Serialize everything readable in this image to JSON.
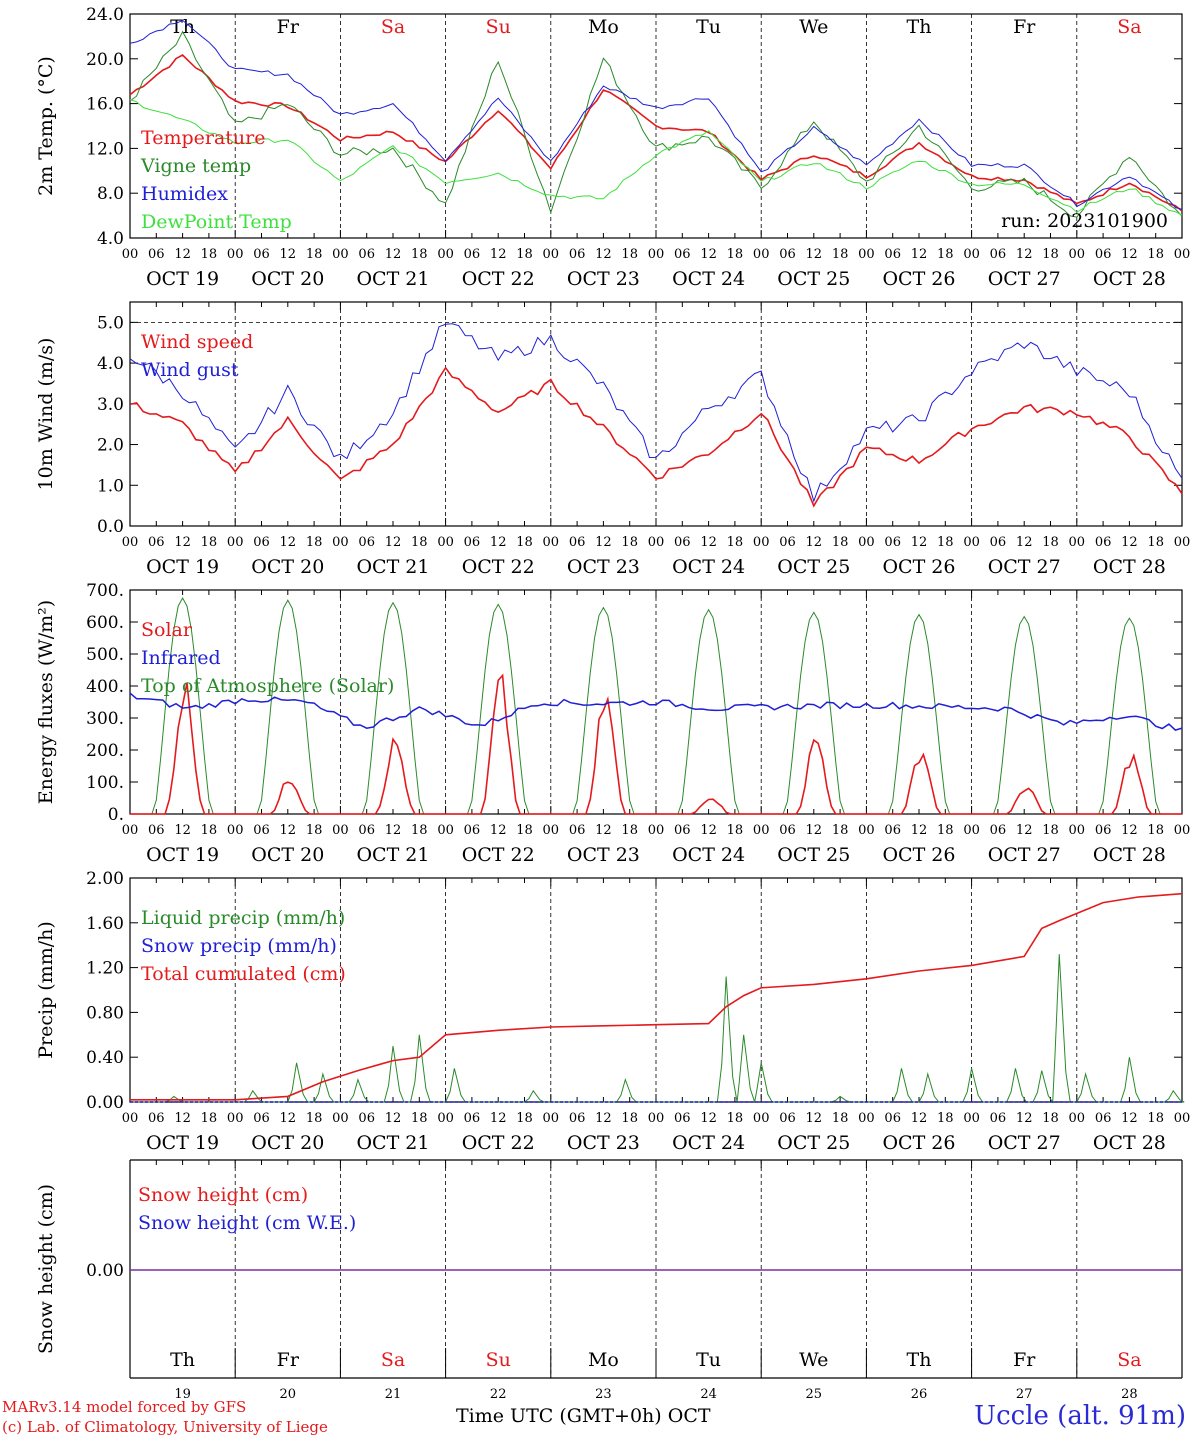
{
  "days": {
    "names": [
      "Th",
      "Fr",
      "Sa",
      "Su",
      "Mo",
      "Tu",
      "We",
      "Th",
      "Fr",
      "Sa"
    ],
    "weekend": [
      false,
      false,
      true,
      true,
      false,
      false,
      false,
      false,
      false,
      true
    ],
    "dates": [
      "OCT 19",
      "OCT 20",
      "OCT 21",
      "OCT 22",
      "OCT 23",
      "OCT 24",
      "OCT 25",
      "OCT 26",
      "OCT 27",
      "OCT 28"
    ],
    "day_numbers": [
      "19",
      "20",
      "21",
      "22",
      "23",
      "24",
      "25",
      "26",
      "27",
      "28"
    ],
    "hour_ticks": [
      "00",
      "06",
      "12",
      "18"
    ],
    "end_tick": "00"
  },
  "colors": {
    "red": "#e41a1c",
    "green": "#2a8a2a",
    "blue": "#1f1fd6",
    "lightgreen": "#3de03d",
    "purple": "#7b2fa0"
  },
  "footer": {
    "model_line": "MARv3.14 model forced by GFS",
    "lab_line": "(c) Lab. of Climatology, University of Liege",
    "time_label": "Time UTC (GMT+0h)",
    "month": "OCT",
    "station": "Uccle (alt. 91m)"
  },
  "chart_data": [
    {
      "type": "line",
      "ylabel": "2m Temp. (°C)",
      "ylim": [
        4,
        24
      ],
      "yticks": [
        "4.0",
        "8.0",
        "12.0",
        "16.0",
        "20.0",
        "24.0"
      ],
      "annotation": "run: 2023101900",
      "x_hours": [
        0,
        12,
        24,
        36,
        48,
        60,
        72,
        84,
        96,
        108,
        120,
        132,
        144,
        156,
        168,
        180,
        192,
        204,
        216,
        228,
        240
      ],
      "series": [
        {
          "name": "Temperature",
          "color": "red",
          "values": [
            16.8,
            20.3,
            16.2,
            15.8,
            12.8,
            13.5,
            10.8,
            15.5,
            10.2,
            17.3,
            14.0,
            13.5,
            9.2,
            11.5,
            9.5,
            12.5,
            9.5,
            9.2,
            7.0,
            9.0,
            6.4
          ]
        },
        {
          "name": "Vigne temp",
          "color": "green",
          "values": [
            16.3,
            22.0,
            14.0,
            16.0,
            11.5,
            12.0,
            7.0,
            20.0,
            6.5,
            20.0,
            12.0,
            13.0,
            8.5,
            14.5,
            9.0,
            14.0,
            8.5,
            9.0,
            6.0,
            11.5,
            5.8
          ]
        },
        {
          "name": "Humidex",
          "color": "blue",
          "values": [
            21.4,
            23.6,
            19.0,
            18.6,
            15.0,
            16.0,
            11.0,
            16.5,
            10.8,
            17.6,
            15.6,
            16.6,
            9.8,
            13.8,
            10.5,
            14.6,
            10.5,
            10.5,
            7.0,
            9.6,
            6.4
          ]
        },
        {
          "name": "DewPoint Temp",
          "color": "lightgreen",
          "values": [
            16.3,
            14.5,
            12.5,
            12.8,
            9.0,
            12.2,
            9.0,
            9.8,
            7.8,
            7.5,
            11.5,
            13.5,
            9.0,
            10.8,
            8.5,
            11.0,
            8.8,
            8.8,
            6.5,
            8.5,
            6.0
          ]
        }
      ]
    },
    {
      "type": "line",
      "ylabel": "10m Wind (m/s)",
      "ylim": [
        0,
        5.5
      ],
      "yticks": [
        "0.0",
        "1.0",
        "2.0",
        "3.0",
        "4.0",
        "5.0"
      ],
      "x_hours": [
        0,
        12,
        24,
        36,
        48,
        60,
        72,
        84,
        96,
        108,
        120,
        132,
        144,
        156,
        168,
        180,
        192,
        204,
        216,
        228,
        240
      ],
      "series": [
        {
          "name": "Wind speed",
          "color": "red",
          "values": [
            3.0,
            2.5,
            1.3,
            2.6,
            1.1,
            2.0,
            3.8,
            2.8,
            3.5,
            2.4,
            1.2,
            1.8,
            2.8,
            0.5,
            1.9,
            1.6,
            2.4,
            2.9,
            2.8,
            2.2,
            0.8
          ]
        },
        {
          "name": "Wind gust",
          "color": "blue",
          "values": [
            4.2,
            3.3,
            1.8,
            3.3,
            1.6,
            2.8,
            5.0,
            4.1,
            4.6,
            3.4,
            1.6,
            2.9,
            3.7,
            0.7,
            2.3,
            2.6,
            3.8,
            4.5,
            3.8,
            3.3,
            1.1
          ]
        }
      ]
    },
    {
      "type": "line",
      "ylabel": "Energy fluxes (W/m²)",
      "ylim": [
        0,
        700
      ],
      "yticks": [
        "0.",
        "100.",
        "200.",
        "300.",
        "400.",
        "500.",
        "600.",
        "700."
      ],
      "series": [
        {
          "name": "Solar",
          "color": "red",
          "peaks": [
            440,
            125,
            250,
            450,
            400,
            60,
            260,
            220,
            95,
            200
          ]
        },
        {
          "name": "Infrared",
          "color": "blue",
          "values": [
            370,
            330,
            360,
            350,
            270,
            330,
            275,
            350,
            345,
            350,
            330,
            335,
            340,
            340,
            335,
            330,
            280,
            310,
            260
          ]
        },
        {
          "name": "Top of Atmosphere (Solar)",
          "color": "green",
          "peaks": [
            675,
            668,
            660,
            655,
            645,
            638,
            630,
            623,
            617,
            612
          ]
        }
      ]
    },
    {
      "type": "line",
      "ylabel": "Precip (mm/h)",
      "ylim": [
        0,
        2.0
      ],
      "yticks": [
        "0.00",
        "0.40",
        "0.80",
        "1.20",
        "1.60",
        "2.00"
      ],
      "series": [
        {
          "name": "Liquid precip (mm/h)",
          "color": "green",
          "events": [
            [
              10,
              0.05
            ],
            [
              28,
              0.1
            ],
            [
              38,
              0.35
            ],
            [
              44,
              0.25
            ],
            [
              52,
              0.2
            ],
            [
              60,
              0.5
            ],
            [
              66,
              0.6
            ],
            [
              74,
              0.3
            ],
            [
              92,
              0.1
            ],
            [
              113,
              0.2
            ],
            [
              136,
              1.12
            ],
            [
              140,
              0.6
            ],
            [
              144,
              0.35
            ],
            [
              162,
              0.05
            ],
            [
              176,
              0.3
            ],
            [
              182,
              0.25
            ],
            [
              192,
              0.3
            ],
            [
              202,
              0.3
            ],
            [
              208,
              0.28
            ],
            [
              212,
              1.32
            ],
            [
              218,
              0.25
            ],
            [
              228,
              0.4
            ],
            [
              238,
              0.1
            ]
          ]
        },
        {
          "name": "Snow precip (mm/h)",
          "color": "blue",
          "values": [
            0
          ]
        },
        {
          "name": "Total cumulated (cm)",
          "color": "red",
          "x_hours": [
            0,
            24,
            36,
            44,
            52,
            60,
            66,
            72,
            84,
            96,
            108,
            120,
            132,
            136,
            140,
            144,
            156,
            168,
            180,
            192,
            204,
            208,
            212,
            222,
            230,
            240
          ],
          "values": [
            0.02,
            0.02,
            0.05,
            0.18,
            0.28,
            0.37,
            0.4,
            0.6,
            0.64,
            0.67,
            0.68,
            0.69,
            0.7,
            0.85,
            0.95,
            1.02,
            1.05,
            1.1,
            1.17,
            1.22,
            1.3,
            1.55,
            1.62,
            1.78,
            1.83,
            1.86
          ]
        }
      ]
    },
    {
      "type": "line",
      "ylabel": "Snow height (cm)",
      "yticks": [
        "0.00"
      ],
      "series": [
        {
          "name": "Snow height (cm)",
          "color": "red",
          "values": [
            0
          ]
        },
        {
          "name": "Snow height (cm W.E.)",
          "color": "blue",
          "values": [
            0
          ]
        }
      ]
    }
  ]
}
